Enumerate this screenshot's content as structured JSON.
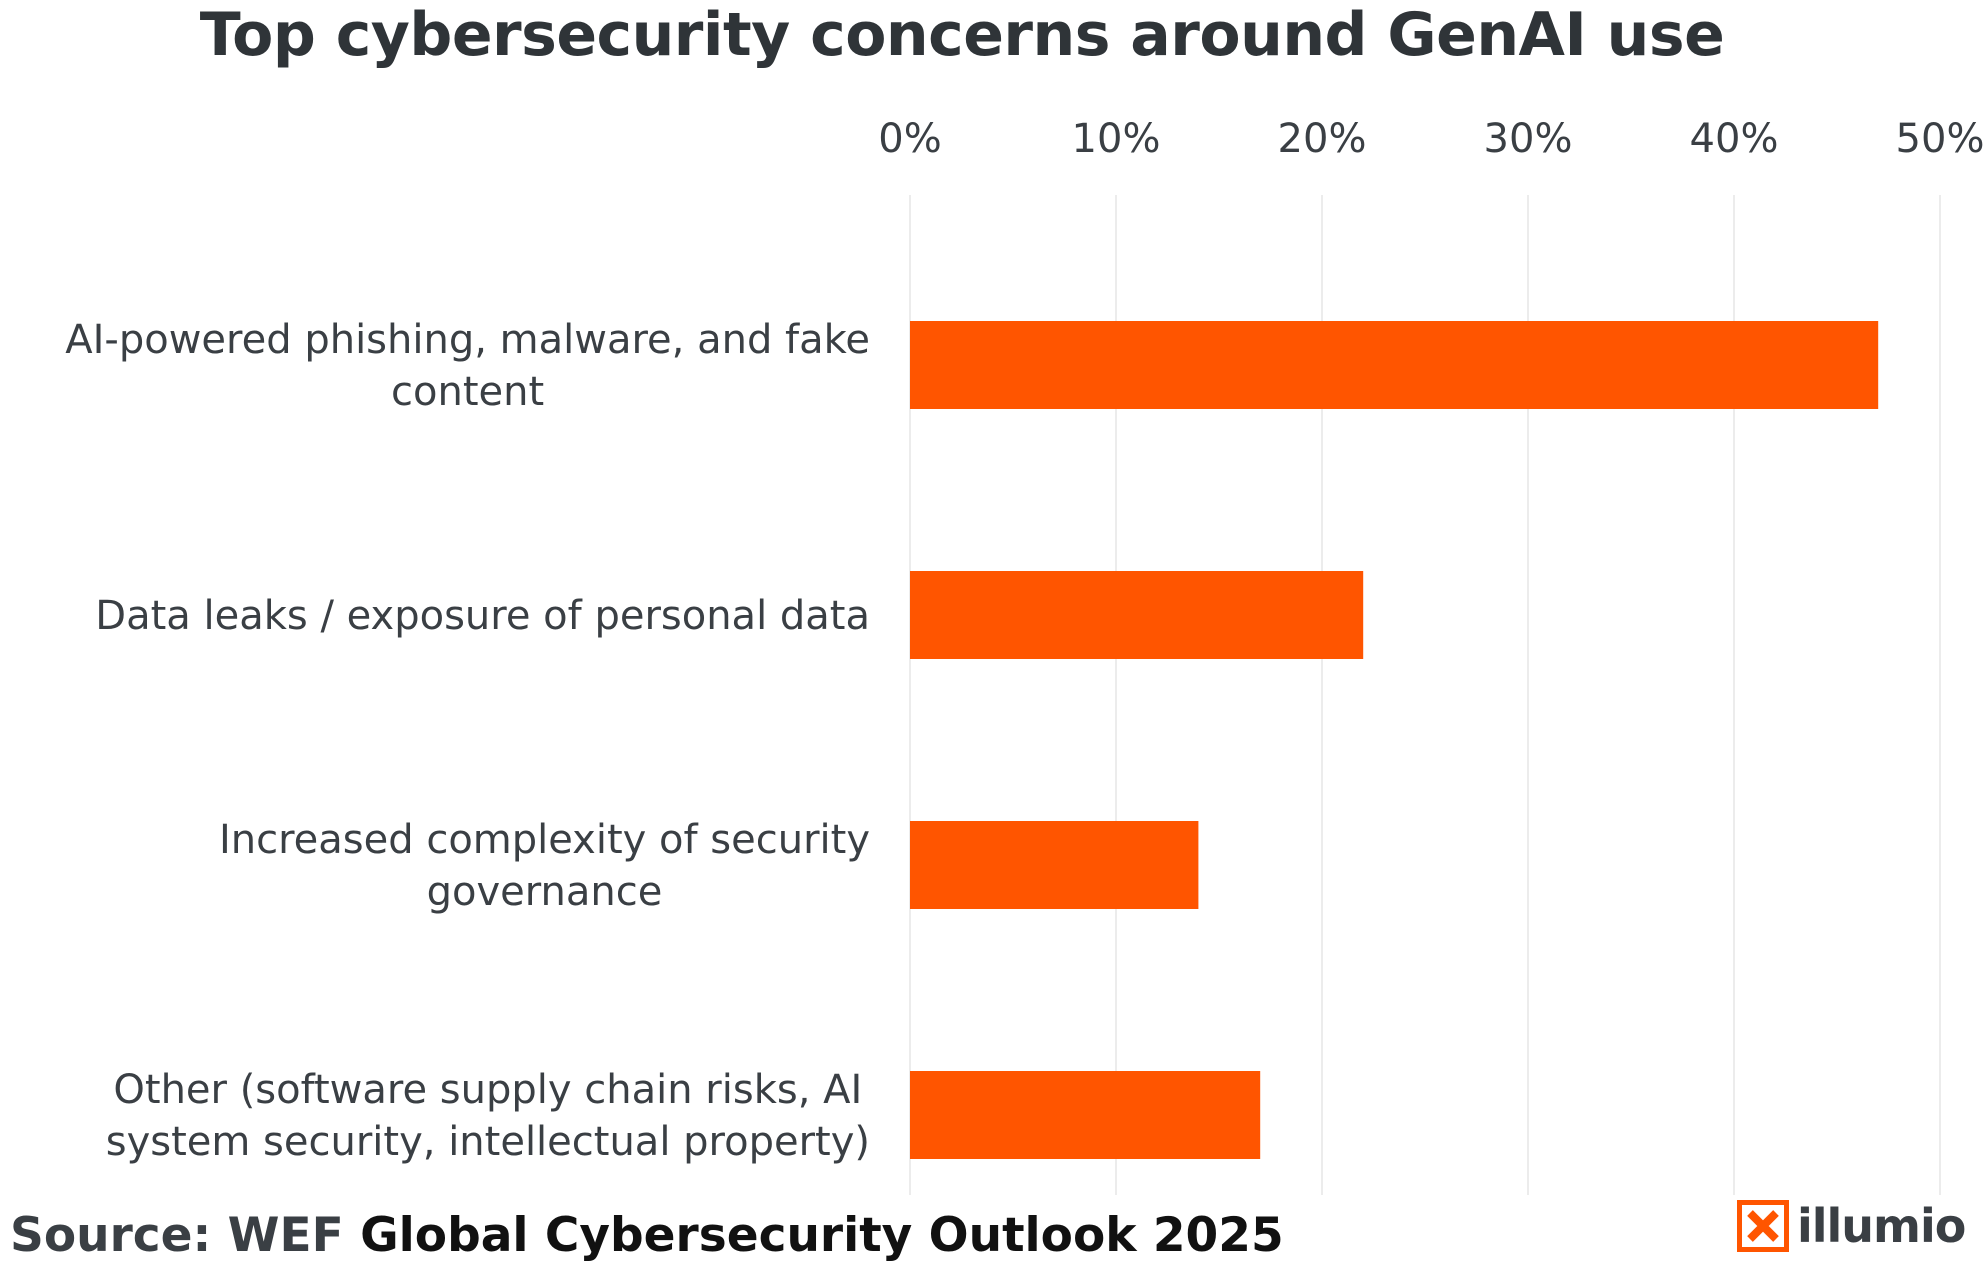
{
  "chart_data": {
    "type": "bar",
    "orientation": "horizontal",
    "title": "Top cybersecurity concerns around GenAI use",
    "categories": [
      [
        "AI-powered phishing, malware, and fake",
        "content"
      ],
      [
        "Data leaks / exposure of personal data"
      ],
      [
        "Increased complexity of security",
        "governance"
      ],
      [
        "Other (software supply chain risks, AI",
        "system security, intellectual property)"
      ]
    ],
    "values": [
      47,
      22,
      14,
      17
    ],
    "xlim": [
      0,
      50
    ],
    "xticks": [
      "0%",
      "10%",
      "20%",
      "30%",
      "40%",
      "50%"
    ],
    "x_axis_position": "top",
    "grid": true,
    "bar_color": "#ff5500",
    "gridline_color": "#e6e6e6",
    "text_color": "#3a3f44"
  },
  "source": {
    "lead": "Source: WEF ",
    "publication": "Global Cybersecurity Outlook 2025"
  },
  "logo": {
    "text": "illumio",
    "color": "#ff5500",
    "icon": "illumio-logo-icon"
  }
}
